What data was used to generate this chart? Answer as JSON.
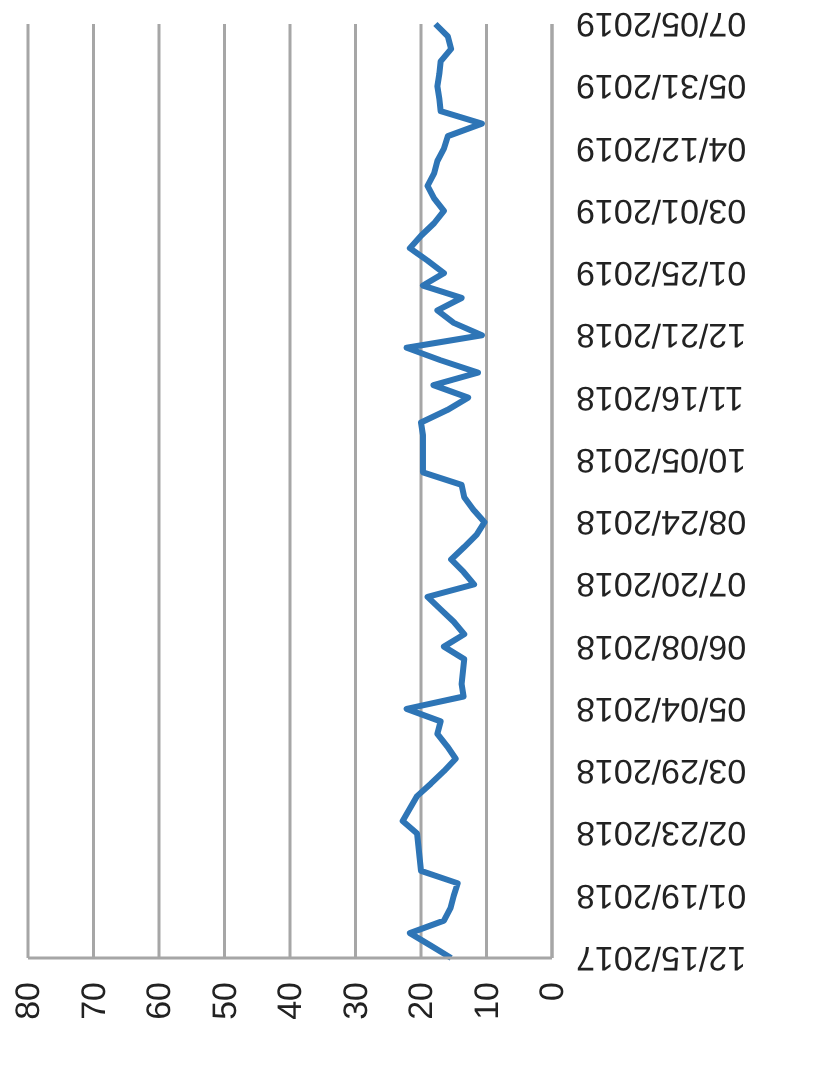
{
  "chart_data": {
    "type": "line",
    "categories": [
      "07/05/2019",
      null,
      null,
      null,
      null,
      "05/31/2019",
      null,
      null,
      null,
      null,
      "04/12/2019",
      null,
      null,
      null,
      null,
      "03/01/2019",
      null,
      null,
      null,
      null,
      "01/25/2019",
      null,
      null,
      null,
      null,
      "12/21/2018",
      null,
      null,
      null,
      null,
      "11/16/2018",
      null,
      null,
      null,
      null,
      "10/05/2018",
      null,
      null,
      null,
      null,
      "08/24/2018",
      null,
      null,
      null,
      null,
      "07/20/2018",
      null,
      null,
      null,
      null,
      "06/08/2018",
      null,
      null,
      null,
      null,
      "05/04/2018",
      null,
      null,
      null,
      null,
      "03/29/2018",
      null,
      null,
      null,
      null,
      "02/23/2018",
      null,
      null,
      null,
      null,
      "01/19/2018",
      null,
      null,
      null,
      null,
      "12/15/2017"
    ],
    "series": [
      {
        "color": "#2e75b6",
        "values": [
          17.8,
          15.9,
          15.4,
          17,
          17.2,
          17.5,
          17.2,
          17,
          10.7,
          15.9,
          16.5,
          17.5,
          18,
          19,
          18,
          16.5,
          18,
          20,
          21.7,
          19,
          16.5,
          19.7,
          13.8,
          17.5,
          15,
          10.7,
          22.2,
          17,
          11.3,
          18.1,
          12.8,
          16,
          20,
          19.7,
          19.7,
          19.7,
          19.7,
          13.8,
          13.4,
          12,
          10.3,
          11.5,
          13.4,
          15.4,
          13.5,
          11.9,
          19,
          17,
          15,
          13.4,
          16.5,
          13.4,
          13.6,
          13.8,
          13.5,
          22.2,
          17,
          17.5,
          16,
          14.7,
          16.5,
          18.5,
          20.6,
          21.7,
          22.8,
          20.6,
          20.4,
          20.2,
          20,
          14.4,
          15,
          15.5,
          16.5,
          21.7,
          18.5,
          15.4
        ]
      }
    ],
    "orientation": "horizontal",
    "xlim": [
      80,
      0
    ],
    "xticks": [
      80,
      70,
      60,
      50,
      40,
      30,
      20,
      10,
      0
    ],
    "grid": "x",
    "legend": false,
    "marker": "none",
    "line_style": "solid"
  }
}
